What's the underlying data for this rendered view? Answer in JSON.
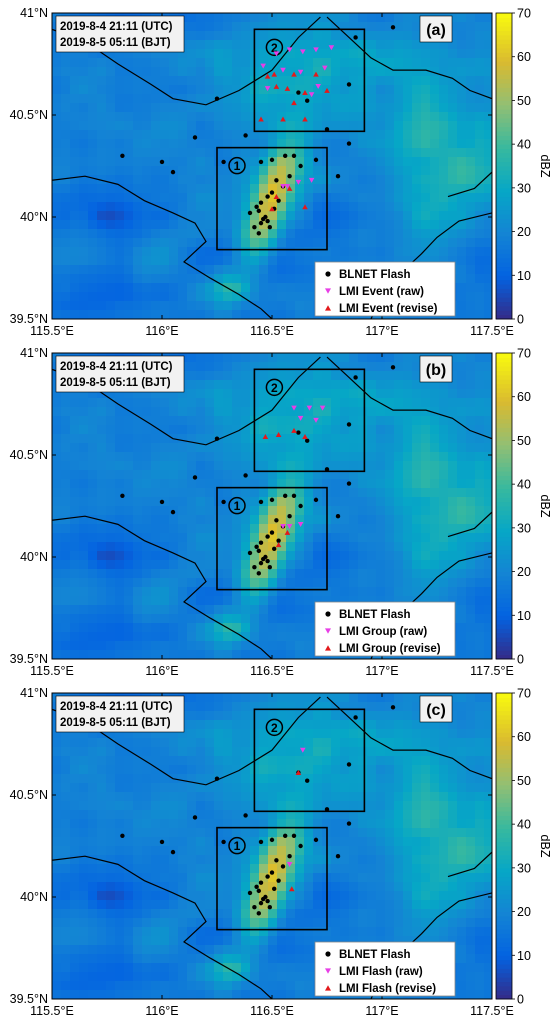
{
  "chart_data": [
    {
      "type": "scatter",
      "panel_label": "(a)",
      "time_utc": "2019-8-4 21:11 (UTC)",
      "time_bjt": "2019-8-5 05:11 (BJT)",
      "x_ticks": [
        "115.5°E",
        "116°E",
        "116.5°E",
        "117°E",
        "117.5°E"
      ],
      "y_ticks": [
        "41°N",
        "40.5°N",
        "40°N",
        "39.5°N"
      ],
      "xlim": [
        115.5,
        117.5
      ],
      "ylim": [
        39.5,
        41.0
      ],
      "colorbar": {
        "label": "dBZ",
        "ticks": [
          "0",
          "10",
          "20",
          "30",
          "40",
          "50",
          "60",
          "70"
        ],
        "range": [
          0,
          70
        ]
      },
      "regions": [
        {
          "label": "1",
          "lon": [
            116.25,
            116.75
          ],
          "lat": [
            39.84,
            40.34
          ]
        },
        {
          "label": "2",
          "lon": [
            116.42,
            116.92
          ],
          "lat": [
            40.42,
            40.92
          ]
        }
      ],
      "legend": [
        "BLNET Flash",
        "LMI Event (raw)",
        "LMI Event (revise)"
      ],
      "legend_position": "bottom-right",
      "series": [
        {
          "name": "BLNET Flash",
          "points": [
            [
              116.4,
              40.02
            ],
            [
              116.43,
              40.05
            ],
            [
              116.45,
              40.07
            ],
            [
              116.48,
              40.1
            ],
            [
              116.5,
              40.12
            ],
            [
              116.47,
              40.0
            ],
            [
              116.45,
              39.97
            ],
            [
              116.42,
              39.95
            ],
            [
              116.44,
              39.92
            ],
            [
              116.48,
              39.98
            ],
            [
              116.51,
              40.04
            ],
            [
              116.53,
              40.08
            ],
            [
              116.55,
              40.15
            ],
            [
              116.52,
              40.18
            ],
            [
              116.58,
              40.2
            ],
            [
              116.46,
              39.99
            ],
            [
              116.49,
              39.95
            ],
            [
              116.44,
              40.03
            ],
            [
              116.6,
              40.3
            ],
            [
              116.63,
              40.25
            ],
            [
              116.56,
              40.3
            ],
            [
              116.5,
              40.28
            ],
            [
              116.45,
              40.27
            ],
            [
              116.7,
              40.28
            ],
            [
              116.8,
              40.2
            ],
            [
              116.62,
              40.61
            ],
            [
              116.66,
              40.57
            ],
            [
              116.85,
              40.65
            ],
            [
              116.75,
              40.43
            ],
            [
              116.38,
              40.4
            ],
            [
              116.25,
              40.58
            ],
            [
              116.15,
              40.39
            ],
            [
              116.28,
              40.27
            ],
            [
              116.05,
              40.22
            ],
            [
              116.0,
              40.27
            ],
            [
              115.82,
              40.3
            ],
            [
              116.85,
              40.36
            ],
            [
              116.88,
              40.88
            ],
            [
              117.05,
              40.93
            ]
          ]
        },
        {
          "name": "LMI Event (raw)",
          "points": [
            [
              116.52,
              40.8
            ],
            [
              116.58,
              40.82
            ],
            [
              116.64,
              40.81
            ],
            [
              116.7,
              40.82
            ],
            [
              116.77,
              40.83
            ],
            [
              116.46,
              40.74
            ],
            [
              116.55,
              40.72
            ],
            [
              116.63,
              40.71
            ],
            [
              116.74,
              40.73
            ],
            [
              116.48,
              40.63
            ],
            [
              116.68,
              40.6
            ],
            [
              116.71,
              40.64
            ],
            [
              116.55,
              40.15
            ],
            [
              116.57,
              40.15
            ],
            [
              116.62,
              40.17
            ],
            [
              116.68,
              40.18
            ]
          ]
        },
        {
          "name": "LMI Event (revise)",
          "points": [
            [
              116.48,
              40.69
            ],
            [
              116.51,
              40.7
            ],
            [
              116.6,
              40.7
            ],
            [
              116.7,
              40.7
            ],
            [
              116.52,
              40.64
            ],
            [
              116.57,
              40.63
            ],
            [
              116.65,
              40.61
            ],
            [
              116.75,
              40.62
            ],
            [
              116.6,
              40.56
            ],
            [
              116.45,
              40.48
            ],
            [
              116.55,
              40.48
            ],
            [
              116.65,
              40.48
            ],
            [
              116.52,
              40.1
            ],
            [
              116.58,
              40.14
            ],
            [
              116.65,
              40.05
            ],
            [
              116.5,
              40.04
            ]
          ]
        }
      ]
    },
    {
      "type": "scatter",
      "panel_label": "(b)",
      "time_utc": "2019-8-4 21:11 (UTC)",
      "time_bjt": "2019-8-5 05:11 (BJT)",
      "x_ticks": [
        "115.5°E",
        "116°E",
        "116.5°E",
        "117°E",
        "117.5°E"
      ],
      "y_ticks": [
        "41°N",
        "40.5°N",
        "40°N",
        "39.5°N"
      ],
      "xlim": [
        115.5,
        117.5
      ],
      "ylim": [
        39.5,
        41.0
      ],
      "colorbar": {
        "label": "dBZ",
        "ticks": [
          "0",
          "10",
          "20",
          "30",
          "40",
          "50",
          "60",
          "70"
        ],
        "range": [
          0,
          70
        ]
      },
      "regions": [
        {
          "label": "1",
          "lon": [
            116.25,
            116.75
          ],
          "lat": [
            39.84,
            40.34
          ]
        },
        {
          "label": "2",
          "lon": [
            116.42,
            116.92
          ],
          "lat": [
            40.42,
            40.92
          ]
        }
      ],
      "legend": [
        "BLNET Flash",
        "LMI Group (raw)",
        "LMI Group (revise)"
      ],
      "legend_position": "bottom-right",
      "series": [
        {
          "name": "BLNET Flash",
          "points": [
            [
              116.4,
              40.02
            ],
            [
              116.43,
              40.05
            ],
            [
              116.45,
              40.07
            ],
            [
              116.48,
              40.1
            ],
            [
              116.5,
              40.12
            ],
            [
              116.47,
              40.0
            ],
            [
              116.45,
              39.97
            ],
            [
              116.42,
              39.95
            ],
            [
              116.44,
              39.92
            ],
            [
              116.48,
              39.98
            ],
            [
              116.51,
              40.04
            ],
            [
              116.53,
              40.08
            ],
            [
              116.55,
              40.15
            ],
            [
              116.52,
              40.18
            ],
            [
              116.58,
              40.2
            ],
            [
              116.46,
              39.99
            ],
            [
              116.49,
              39.95
            ],
            [
              116.44,
              40.03
            ],
            [
              116.6,
              40.3
            ],
            [
              116.63,
              40.25
            ],
            [
              116.56,
              40.3
            ],
            [
              116.5,
              40.28
            ],
            [
              116.45,
              40.27
            ],
            [
              116.7,
              40.28
            ],
            [
              116.8,
              40.2
            ],
            [
              116.62,
              40.61
            ],
            [
              116.66,
              40.57
            ],
            [
              116.85,
              40.65
            ],
            [
              116.75,
              40.43
            ],
            [
              116.38,
              40.4
            ],
            [
              116.25,
              40.58
            ],
            [
              116.15,
              40.39
            ],
            [
              116.28,
              40.27
            ],
            [
              116.05,
              40.22
            ],
            [
              116.0,
              40.27
            ],
            [
              115.82,
              40.3
            ],
            [
              116.85,
              40.36
            ],
            [
              116.88,
              40.88
            ],
            [
              117.05,
              40.93
            ]
          ]
        },
        {
          "name": "LMI Group (raw)",
          "points": [
            [
              116.6,
              40.73
            ],
            [
              116.67,
              40.73
            ],
            [
              116.73,
              40.73
            ],
            [
              116.63,
              40.68
            ],
            [
              116.7,
              40.67
            ],
            [
              116.55,
              40.15
            ],
            [
              116.58,
              40.15
            ],
            [
              116.63,
              40.16
            ]
          ]
        },
        {
          "name": "LMI Group (revise)",
          "points": [
            [
              116.47,
              40.59
            ],
            [
              116.53,
              40.6
            ],
            [
              116.6,
              40.62
            ],
            [
              116.65,
              40.59
            ],
            [
              116.53,
              40.06
            ],
            [
              116.57,
              40.12
            ]
          ]
        }
      ]
    },
    {
      "type": "scatter",
      "panel_label": "(c)",
      "time_utc": "2019-8-4 21:11 (UTC)",
      "time_bjt": "2019-8-5 05:11 (BJT)",
      "x_ticks": [
        "115.5°E",
        "116°E",
        "116.5°E",
        "117°E",
        "117.5°E"
      ],
      "y_ticks": [
        "41°N",
        "40.5°N",
        "40°N",
        "39.5°N"
      ],
      "xlim": [
        115.5,
        117.5
      ],
      "ylim": [
        39.5,
        41.0
      ],
      "colorbar": {
        "label": "dBZ",
        "ticks": [
          "0",
          "10",
          "20",
          "30",
          "40",
          "50",
          "60",
          "70"
        ],
        "range": [
          0,
          70
        ]
      },
      "regions": [
        {
          "label": "1",
          "lon": [
            116.25,
            116.75
          ],
          "lat": [
            39.84,
            40.34
          ]
        },
        {
          "label": "2",
          "lon": [
            116.42,
            116.92
          ],
          "lat": [
            40.42,
            40.92
          ]
        }
      ],
      "legend": [
        "BLNET Flash",
        "LMI Flash (raw)",
        "LMI Flash (revise)"
      ],
      "legend_position": "bottom-right",
      "series": [
        {
          "name": "BLNET Flash",
          "points": [
            [
              116.4,
              40.02
            ],
            [
              116.43,
              40.05
            ],
            [
              116.45,
              40.07
            ],
            [
              116.48,
              40.1
            ],
            [
              116.5,
              40.12
            ],
            [
              116.47,
              40.0
            ],
            [
              116.45,
              39.97
            ],
            [
              116.42,
              39.95
            ],
            [
              116.44,
              39.92
            ],
            [
              116.48,
              39.98
            ],
            [
              116.51,
              40.04
            ],
            [
              116.53,
              40.08
            ],
            [
              116.55,
              40.15
            ],
            [
              116.52,
              40.18
            ],
            [
              116.58,
              40.2
            ],
            [
              116.46,
              39.99
            ],
            [
              116.49,
              39.95
            ],
            [
              116.44,
              40.03
            ],
            [
              116.6,
              40.3
            ],
            [
              116.63,
              40.25
            ],
            [
              116.56,
              40.3
            ],
            [
              116.5,
              40.28
            ],
            [
              116.45,
              40.27
            ],
            [
              116.7,
              40.28
            ],
            [
              116.8,
              40.2
            ],
            [
              116.62,
              40.61
            ],
            [
              116.66,
              40.57
            ],
            [
              116.85,
              40.65
            ],
            [
              116.75,
              40.43
            ],
            [
              116.38,
              40.4
            ],
            [
              116.25,
              40.58
            ],
            [
              116.15,
              40.39
            ],
            [
              116.28,
              40.27
            ],
            [
              116.05,
              40.22
            ],
            [
              116.0,
              40.27
            ],
            [
              115.82,
              40.3
            ],
            [
              116.85,
              40.36
            ],
            [
              116.88,
              40.88
            ],
            [
              117.05,
              40.93
            ]
          ]
        },
        {
          "name": "LMI Flash (raw)",
          "points": [
            [
              116.64,
              40.72
            ],
            [
              116.58,
              40.16
            ]
          ]
        },
        {
          "name": "LMI Flash (revise)",
          "points": [
            [
              116.62,
              40.61
            ],
            [
              116.59,
              40.04
            ]
          ]
        }
      ]
    }
  ]
}
